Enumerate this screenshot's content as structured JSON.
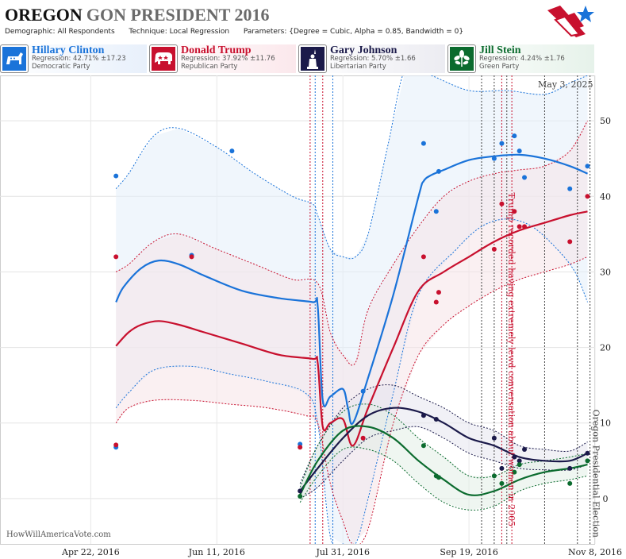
{
  "header": {
    "title_strong": "OREGON",
    "title_rest": "GON PRESIDENT 2016",
    "demographic_label": "Demographic:",
    "demographic_value": "All Respondents",
    "technique_label": "Technique:",
    "technique_value": "Local Regression",
    "parameters_label": "Parameters:",
    "parameters_value": "{Degree = Cubic, Alpha = 0.85, Bandwidth = 0}"
  },
  "candidates": [
    {
      "name": "Hillary Clinton",
      "regression": "Regression: 42.71% ±17.23",
      "party": "Democratic Party",
      "color": "#1a73d9",
      "icon": "donkey-icon"
    },
    {
      "name": "Donald Trump",
      "regression": "Regression: 37.92% ±11.76",
      "party": "Republican Party",
      "color": "#c8102e",
      "icon": "elephant-icon"
    },
    {
      "name": "Gary Johnson",
      "regression": "Regression: 5.70% ±1.66",
      "party": "Libertarian Party",
      "color": "#1b1a4a",
      "icon": "statue-of-liberty-icon"
    },
    {
      "name": "Jill Stein",
      "regression": "Regression: 4.24% ±1.76",
      "party": "Green Party",
      "color": "#0b6b2e",
      "icon": "leaf-icon"
    }
  ],
  "date_stamp": "May 3, 2025",
  "source": "HowWillAmericaVote.com",
  "annotations": [
    {
      "text": "Trump recorded having extremely lewd conversation about women in 2005",
      "color": "#c8102e"
    },
    {
      "text": "Oregon Presidential Election",
      "color": "#444444"
    }
  ],
  "chart_data": {
    "type": "line",
    "x_tick_labels": [
      "Apr 22, 2016",
      "Jun 11, 2016",
      "Jul 31, 2016",
      "Sep 19, 2016",
      "Nov 8, 2016"
    ],
    "y_tick_labels": [
      "0",
      "10",
      "20",
      "30",
      "40",
      "50"
    ],
    "ylim": [
      -6,
      56
    ],
    "x_range_days": [
      -36,
      200
    ],
    "x_axis_note": "days after Apr 22, 2016",
    "grid": true,
    "series": [
      {
        "name": "Hillary Clinton",
        "color": "#1a73d9",
        "fill": "#e4eef9",
        "trend": [
          [
            10,
            26
          ],
          [
            13,
            28
          ],
          [
            20,
            30.5
          ],
          [
            27,
            31.5
          ],
          [
            35,
            31
          ],
          [
            45,
            29.5
          ],
          [
            60,
            27.5
          ],
          [
            75,
            26.5
          ],
          [
            88,
            26
          ],
          [
            90,
            25.5
          ],
          [
            92,
            13
          ],
          [
            95,
            13.5
          ],
          [
            100,
            14.5
          ],
          [
            102,
            12
          ],
          [
            104,
            10
          ],
          [
            110,
            16
          ],
          [
            120,
            27
          ],
          [
            130,
            40
          ],
          [
            132,
            42
          ],
          [
            135,
            42.8
          ],
          [
            140,
            43.5
          ],
          [
            150,
            44.8
          ],
          [
            160,
            45.3
          ],
          [
            170,
            45.5
          ],
          [
            180,
            45
          ],
          [
            190,
            44
          ],
          [
            197,
            43
          ]
        ],
        "upper": [
          [
            10,
            41
          ],
          [
            15,
            43
          ],
          [
            25,
            48
          ],
          [
            35,
            49
          ],
          [
            50,
            46.5
          ],
          [
            65,
            43
          ],
          [
            80,
            40
          ],
          [
            88,
            39
          ],
          [
            90,
            37.5
          ],
          [
            95,
            33
          ],
          [
            100,
            32
          ],
          [
            105,
            32
          ],
          [
            110,
            35
          ],
          [
            118,
            47
          ],
          [
            125,
            57
          ],
          [
            135,
            56
          ],
          [
            150,
            54
          ],
          [
            165,
            54
          ],
          [
            180,
            53.5
          ],
          [
            190,
            55
          ],
          [
            197,
            56
          ]
        ],
        "lower": [
          [
            10,
            12
          ],
          [
            15,
            14
          ],
          [
            25,
            17
          ],
          [
            40,
            17.5
          ],
          [
            55,
            16.5
          ],
          [
            70,
            15.5
          ],
          [
            85,
            14
          ],
          [
            90,
            10
          ],
          [
            95,
            -5
          ],
          [
            100,
            -6
          ],
          [
            105,
            -6
          ],
          [
            110,
            0
          ],
          [
            120,
            14
          ],
          [
            130,
            27
          ],
          [
            145,
            33
          ],
          [
            155,
            36
          ],
          [
            165,
            37
          ],
          [
            175,
            36
          ],
          [
            185,
            33
          ],
          [
            192,
            30
          ],
          [
            197,
            26
          ]
        ],
        "points": [
          [
            10,
            42.7
          ],
          [
            10,
            6.8
          ],
          [
            40,
            32.2
          ],
          [
            56,
            46
          ],
          [
            83,
            7.2
          ],
          [
            108,
            14.2
          ],
          [
            132,
            47
          ],
          [
            137,
            38
          ],
          [
            138,
            43.3
          ],
          [
            160,
            45
          ],
          [
            163,
            47
          ],
          [
            168,
            48
          ],
          [
            170,
            46
          ],
          [
            172,
            42.5
          ],
          [
            190,
            41
          ],
          [
            197,
            44
          ]
        ]
      },
      {
        "name": "Donald Trump",
        "color": "#c8102e",
        "fill": "#f6e4e8",
        "trend": [
          [
            10,
            20.2
          ],
          [
            15,
            22
          ],
          [
            20,
            23
          ],
          [
            27,
            23.5
          ],
          [
            35,
            23
          ],
          [
            45,
            22
          ],
          [
            60,
            20.5
          ],
          [
            75,
            19
          ],
          [
            88,
            18.5
          ],
          [
            90,
            18
          ],
          [
            92,
            9.5
          ],
          [
            95,
            10
          ],
          [
            100,
            10.5
          ],
          [
            104,
            7
          ],
          [
            110,
            12
          ],
          [
            120,
            20
          ],
          [
            130,
            27.5
          ],
          [
            140,
            30
          ],
          [
            150,
            32
          ],
          [
            160,
            34
          ],
          [
            170,
            35.5
          ],
          [
            180,
            36.5
          ],
          [
            190,
            37.5
          ],
          [
            197,
            38
          ]
        ],
        "upper": [
          [
            10,
            30
          ],
          [
            15,
            31
          ],
          [
            25,
            34
          ],
          [
            35,
            35
          ],
          [
            50,
            33
          ],
          [
            65,
            31
          ],
          [
            80,
            29
          ],
          [
            90,
            28.5
          ],
          [
            95,
            22
          ],
          [
            100,
            19
          ],
          [
            105,
            18
          ],
          [
            110,
            25
          ],
          [
            120,
            31
          ],
          [
            130,
            36
          ],
          [
            140,
            40
          ],
          [
            150,
            42
          ],
          [
            160,
            43
          ],
          [
            170,
            43.5
          ],
          [
            180,
            44
          ],
          [
            190,
            46
          ],
          [
            197,
            50
          ]
        ],
        "lower": [
          [
            10,
            10
          ],
          [
            15,
            12
          ],
          [
            25,
            13
          ],
          [
            40,
            13
          ],
          [
            55,
            12.5
          ],
          [
            70,
            12
          ],
          [
            85,
            11
          ],
          [
            90,
            10
          ],
          [
            95,
            2
          ],
          [
            100,
            -3
          ],
          [
            104,
            -6
          ],
          [
            110,
            -4
          ],
          [
            120,
            10
          ],
          [
            130,
            19
          ],
          [
            140,
            23
          ],
          [
            150,
            25.5
          ],
          [
            160,
            27.5
          ],
          [
            170,
            29
          ],
          [
            180,
            30
          ],
          [
            190,
            31
          ],
          [
            197,
            32
          ]
        ],
        "points": [
          [
            10,
            32
          ],
          [
            10,
            7.1
          ],
          [
            40,
            32
          ],
          [
            83,
            6.8
          ],
          [
            108,
            8
          ],
          [
            132,
            32
          ],
          [
            137,
            26
          ],
          [
            138,
            27.3
          ],
          [
            160,
            33
          ],
          [
            163,
            39
          ],
          [
            168,
            38
          ],
          [
            170,
            36
          ],
          [
            172,
            36
          ],
          [
            190,
            34
          ],
          [
            197,
            40
          ]
        ]
      },
      {
        "name": "Gary Johnson",
        "color": "#1b1a4a",
        "fill": "#e6e6ee",
        "trend": [
          [
            83,
            1
          ],
          [
            90,
            4
          ],
          [
            100,
            8
          ],
          [
            110,
            11
          ],
          [
            120,
            12
          ],
          [
            130,
            11.5
          ],
          [
            140,
            10
          ],
          [
            150,
            8
          ],
          [
            160,
            7
          ],
          [
            170,
            5.5
          ],
          [
            180,
            5
          ],
          [
            190,
            5
          ],
          [
            197,
            6
          ]
        ],
        "upper": [
          [
            83,
            2
          ],
          [
            90,
            7
          ],
          [
            100,
            12
          ],
          [
            110,
            14.5
          ],
          [
            120,
            15
          ],
          [
            130,
            13.5
          ],
          [
            140,
            12
          ],
          [
            150,
            10
          ],
          [
            160,
            9
          ],
          [
            170,
            7
          ],
          [
            180,
            6.5
          ],
          [
            190,
            6.3
          ],
          [
            197,
            7.5
          ]
        ],
        "lower": [
          [
            83,
            0
          ],
          [
            90,
            1.5
          ],
          [
            100,
            5
          ],
          [
            110,
            8
          ],
          [
            120,
            9
          ],
          [
            130,
            9.5
          ],
          [
            140,
            8
          ],
          [
            150,
            6
          ],
          [
            160,
            5
          ],
          [
            170,
            4
          ],
          [
            180,
            3.8
          ],
          [
            190,
            3.8
          ],
          [
            197,
            4.5
          ]
        ],
        "points": [
          [
            83,
            1
          ],
          [
            132,
            11
          ],
          [
            137,
            10.5
          ],
          [
            160,
            8
          ],
          [
            163,
            4
          ],
          [
            168,
            5.5
          ],
          [
            170,
            5
          ],
          [
            172,
            6.5
          ],
          [
            190,
            4
          ],
          [
            197,
            6
          ]
        ]
      },
      {
        "name": "Jill Stein",
        "color": "#0b6b2e",
        "fill": "#e1efe5",
        "trend": [
          [
            83,
            0.5
          ],
          [
            90,
            5
          ],
          [
            100,
            9
          ],
          [
            110,
            9.5
          ],
          [
            120,
            8
          ],
          [
            130,
            5
          ],
          [
            140,
            2.5
          ],
          [
            150,
            0.5
          ],
          [
            160,
            1
          ],
          [
            170,
            2.5
          ],
          [
            180,
            3.5
          ],
          [
            190,
            4
          ],
          [
            197,
            4.5
          ]
        ],
        "upper": [
          [
            83,
            1.5
          ],
          [
            90,
            7
          ],
          [
            100,
            11.5
          ],
          [
            110,
            12.5
          ],
          [
            120,
            11
          ],
          [
            130,
            8
          ],
          [
            140,
            5.5
          ],
          [
            150,
            3
          ],
          [
            160,
            3
          ],
          [
            170,
            4.5
          ],
          [
            180,
            5
          ],
          [
            190,
            5.5
          ],
          [
            197,
            6
          ]
        ],
        "lower": [
          [
            83,
            -0.5
          ],
          [
            90,
            3
          ],
          [
            100,
            6.5
          ],
          [
            110,
            6.5
          ],
          [
            120,
            5
          ],
          [
            130,
            2
          ],
          [
            140,
            -0.5
          ],
          [
            150,
            -1.5
          ],
          [
            160,
            -1
          ],
          [
            170,
            1
          ],
          [
            180,
            2
          ],
          [
            190,
            2.5
          ],
          [
            197,
            3
          ]
        ],
        "points": [
          [
            83,
            0.3
          ],
          [
            132,
            7
          ],
          [
            137,
            3
          ],
          [
            138,
            2.8
          ],
          [
            160,
            3
          ],
          [
            163,
            2
          ],
          [
            168,
            3.5
          ],
          [
            170,
            4.5
          ],
          [
            190,
            2
          ],
          [
            197,
            5
          ]
        ]
      }
    ],
    "event_lines": [
      {
        "x": 87,
        "color": "#c8102e"
      },
      {
        "x": 89,
        "color": "#1a73d9"
      },
      {
        "x": 92,
        "color": "#c8102e"
      },
      {
        "x": 96,
        "color": "#1a73d9"
      },
      {
        "x": 155,
        "color": "#444444"
      },
      {
        "x": 160,
        "color": "#444444"
      },
      {
        "x": 163,
        "color": "#c8102e"
      },
      {
        "x": 165,
        "color": "#444444"
      },
      {
        "x": 167,
        "color": "#c8102e"
      },
      {
        "x": 180,
        "color": "#444444"
      },
      {
        "x": 193,
        "color": "#444444"
      },
      {
        "x": 198,
        "color": "#444444"
      }
    ]
  }
}
